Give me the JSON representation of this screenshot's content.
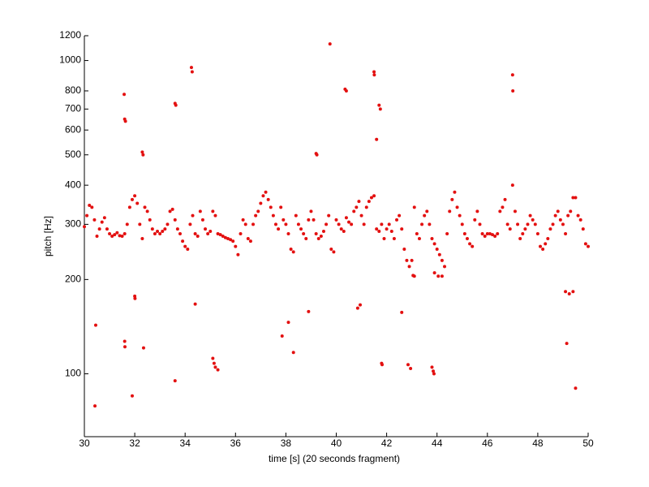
{
  "chart_data": {
    "type": "scatter",
    "x_label": "time [s] (20 seconds fragment)",
    "y_label": "pitch [Hz]",
    "yscale": "log",
    "color": "#e31010",
    "xlim": [
      30,
      50
    ],
    "ylim": [
      63,
      1200
    ],
    "xticks": [
      30,
      32,
      34,
      36,
      38,
      40,
      42,
      44,
      46,
      48,
      50
    ],
    "yticks": [
      100,
      200,
      300,
      400,
      500,
      600,
      700,
      800,
      1000,
      1200
    ],
    "x": [
      30,
      30.1,
      30.2,
      30.3,
      30.4,
      30.5,
      30.6,
      30.7,
      30.8,
      30.9,
      31,
      31.1,
      31.2,
      31.3,
      31.4,
      31.5,
      31.6,
      31.7,
      31.8,
      31.9,
      32,
      32.1,
      32.2,
      32.3,
      32.4,
      32.5,
      32.6,
      32.7,
      32.8,
      32.9,
      33,
      33.1,
      33.2,
      33.3,
      33.4,
      33.5,
      33.6,
      33.7,
      33.8,
      33.9,
      34,
      34.1,
      34.2,
      34.3,
      34.4,
      34.5,
      34.6,
      34.7,
      34.8,
      34.9,
      35,
      35.1,
      35.2,
      35.3,
      35.4,
      35.5,
      35.6,
      35.7,
      35.8,
      35.9,
      36,
      36.1,
      36.2,
      36.3,
      36.4,
      36.5,
      36.6,
      36.7,
      36.8,
      36.9,
      37,
      37.1,
      37.2,
      37.3,
      37.4,
      37.5,
      37.6,
      37.7,
      37.8,
      37.9,
      38,
      38.1,
      38.2,
      38.3,
      38.4,
      38.5,
      38.6,
      38.7,
      38.8,
      38.9,
      39,
      39.1,
      39.2,
      39.3,
      39.4,
      39.5,
      39.6,
      39.7,
      39.8,
      39.9,
      40,
      40.1,
      40.2,
      40.3,
      40.4,
      40.5,
      40.6,
      40.7,
      40.8,
      40.9,
      41,
      41.1,
      41.2,
      41.3,
      41.4,
      41.5,
      41.6,
      41.7,
      41.8,
      41.9,
      42,
      42.1,
      42.2,
      42.3,
      42.4,
      42.5,
      42.6,
      42.7,
      42.8,
      42.9,
      43,
      43.1,
      43.2,
      43.3,
      43.4,
      43.5,
      43.6,
      43.7,
      43.8,
      43.9,
      44,
      44.1,
      44.2,
      44.3,
      44.4,
      44.5,
      44.6,
      44.7,
      44.8,
      44.9,
      45,
      45.1,
      45.2,
      45.3,
      45.4,
      45.5,
      45.6,
      45.7,
      45.8,
      45.9,
      46,
      46.1,
      46.2,
      46.3,
      46.4,
      46.5,
      46.6,
      46.7,
      46.8,
      46.9,
      47,
      47.1,
      47.2,
      47.3,
      47.4,
      47.5,
      47.6,
      47.7,
      47.8,
      47.9,
      48,
      48.1,
      48.2,
      48.3,
      48.4,
      48.5,
      48.6,
      48.7,
      48.8,
      48.9,
      49,
      49.1,
      49.2,
      49.3,
      49.4,
      49.5,
      49.6,
      49.7,
      49.8,
      49.9,
      50,
      30.42,
      30.45,
      31.58,
      31.6,
      31.63,
      31.6,
      31.61,
      31.9,
      32,
      32.01,
      32.3,
      32.33,
      32.35,
      33.6,
      33.6,
      33.63,
      34.25,
      34.28,
      34.4,
      35.1,
      35.15,
      35.2,
      35.3,
      37.85,
      38.1,
      38.3,
      38.9,
      39.2,
      39.23,
      39.75,
      40.35,
      40.4,
      40.85,
      40.95,
      41.5,
      41.51,
      41.6,
      41.7,
      41.75,
      41.8,
      41.82,
      42.6,
      42.85,
      42.95,
      43.05,
      43.1,
      43.8,
      43.85,
      43.88,
      43.9,
      44.05,
      44.2,
      47,
      47.01,
      49.15,
      49.5,
      49.1,
      49.25,
      49.4
    ],
    "values": [
      295,
      320,
      345,
      340,
      310,
      275,
      290,
      305,
      315,
      290,
      280,
      275,
      278,
      282,
      276,
      275,
      280,
      300,
      340,
      360,
      370,
      350,
      300,
      270,
      340,
      330,
      310,
      290,
      280,
      285,
      280,
      285,
      290,
      300,
      330,
      335,
      310,
      290,
      280,
      265,
      255,
      250,
      300,
      320,
      280,
      275,
      330,
      310,
      290,
      280,
      285,
      330,
      320,
      280,
      278,
      275,
      272,
      270,
      268,
      265,
      255,
      240,
      280,
      310,
      300,
      270,
      265,
      300,
      320,
      330,
      350,
      370,
      380,
      360,
      340,
      320,
      300,
      290,
      340,
      310,
      300,
      280,
      250,
      245,
      320,
      300,
      290,
      280,
      270,
      310,
      330,
      310,
      280,
      270,
      275,
      285,
      300,
      320,
      250,
      245,
      310,
      300,
      290,
      285,
      315,
      305,
      300,
      330,
      340,
      355,
      320,
      300,
      340,
      355,
      365,
      370,
      290,
      285,
      300,
      270,
      290,
      300,
      285,
      270,
      310,
      320,
      290,
      250,
      230,
      220,
      230,
      340,
      280,
      270,
      300,
      320,
      330,
      300,
      270,
      260,
      250,
      240,
      230,
      220,
      280,
      330,
      360,
      380,
      340,
      320,
      300,
      280,
      270,
      260,
      255,
      310,
      330,
      300,
      280,
      275,
      280,
      280,
      278,
      275,
      280,
      330,
      340,
      360,
      300,
      290,
      400,
      330,
      300,
      270,
      280,
      290,
      300,
      320,
      310,
      300,
      280,
      255,
      250,
      260,
      270,
      290,
      300,
      320,
      330,
      310,
      300,
      280,
      320,
      330,
      365,
      365,
      320,
      310,
      290,
      260,
      255,
      79,
      143,
      780,
      650,
      640,
      127,
      122,
      85,
      177,
      174,
      510,
      500,
      121,
      95,
      730,
      720,
      950,
      920,
      167,
      112,
      108,
      105,
      103,
      132,
      146,
      117,
      158,
      505,
      500,
      1130,
      810,
      800,
      162,
      166,
      920,
      900,
      560,
      720,
      700,
      108,
      107,
      157,
      107,
      104,
      206,
      205,
      105,
      102,
      100,
      210,
      205,
      205,
      900,
      800,
      125,
      90,
      183,
      180,
      183
    ]
  }
}
